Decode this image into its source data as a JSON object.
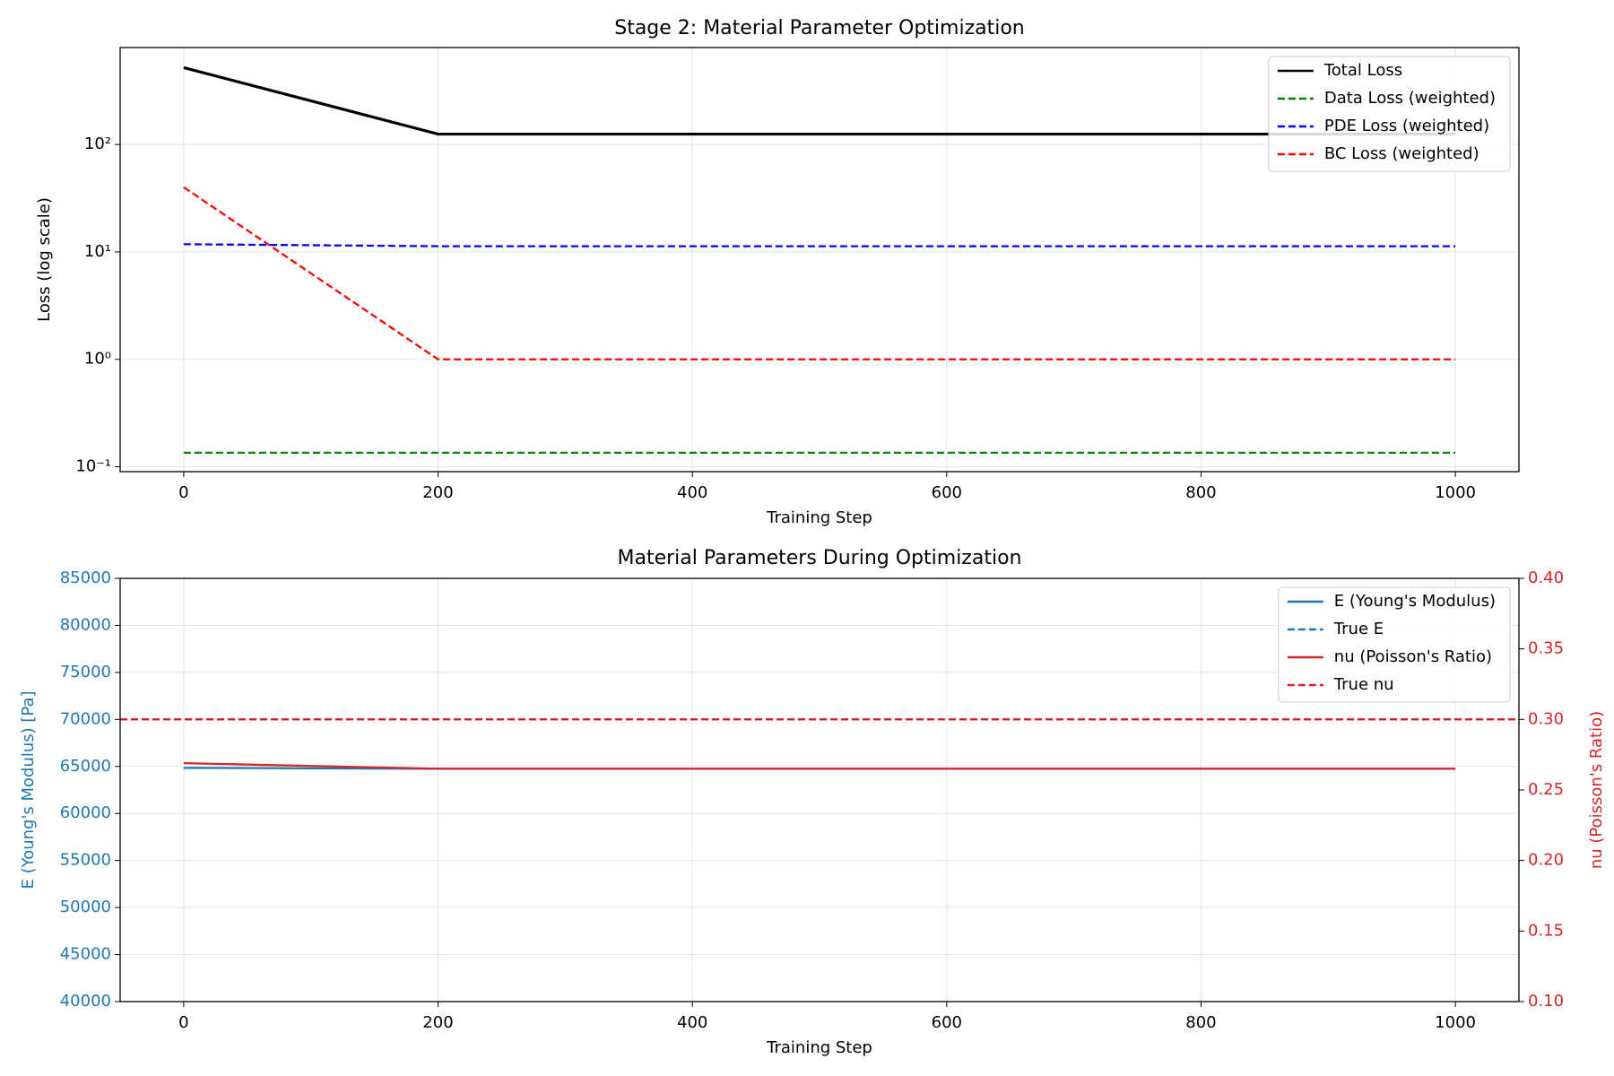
{
  "chart_data": [
    {
      "type": "line",
      "title": "Stage 2: Material Parameter Optimization",
      "xlabel": "Training Step",
      "ylabel": "Loss (log scale)",
      "x": [
        0,
        200,
        400,
        600,
        800,
        1000
      ],
      "xlim": [
        -50,
        1050
      ],
      "xticks": [
        0,
        200,
        400,
        600,
        800,
        1000
      ],
      "ylog": true,
      "ylim": [
        0.09,
        800
      ],
      "yticks": [
        {
          "value": 0.1,
          "label": "10⁻¹"
        },
        {
          "value": 1,
          "label": "10⁰"
        },
        {
          "value": 10,
          "label": "10¹"
        },
        {
          "value": 100,
          "label": "10²"
        }
      ],
      "grid": true,
      "legend": "upper right",
      "series": [
        {
          "name": "Total Loss",
          "color": "#000000",
          "style": "solid",
          "values": [
            520,
            125,
            125,
            125,
            125,
            125
          ]
        },
        {
          "name": "Data Loss (weighted)",
          "color": "#008000",
          "style": "dashed",
          "values": [
            0.135,
            0.135,
            0.135,
            0.135,
            0.135,
            0.135
          ]
        },
        {
          "name": "PDE Loss (weighted)",
          "color": "#0000ff",
          "style": "dashed",
          "values": [
            11.8,
            11.3,
            11.3,
            11.3,
            11.3,
            11.3
          ]
        },
        {
          "name": "BC Loss (weighted)",
          "color": "#ff0000",
          "style": "dashed",
          "values": [
            40,
            1.0,
            1.0,
            1.0,
            1.0,
            1.0
          ]
        }
      ]
    },
    {
      "type": "line",
      "title": "Material Parameters During Optimization",
      "xlabel": "Training Step",
      "ylabel": "E (Young's Modulus) [Pa]",
      "y2label": "nu (Poisson's Ratio)",
      "y_axis_color": "#1f77b4",
      "y2_axis_color": "#d62728",
      "x": [
        0,
        200,
        400,
        600,
        800,
        1000
      ],
      "xlim": [
        -50,
        1050
      ],
      "xticks": [
        0,
        200,
        400,
        600,
        800,
        1000
      ],
      "ylim": [
        40000,
        85000
      ],
      "yticks": [
        40000,
        45000,
        50000,
        55000,
        60000,
        65000,
        70000,
        75000,
        80000,
        85000
      ],
      "y2lim": [
        0.1,
        0.4
      ],
      "y2ticks": [
        {
          "value": 0.1,
          "label": "0.10"
        },
        0.15,
        {
          "value": 0.2,
          "label": "0.20"
        },
        0.25,
        {
          "value": 0.3,
          "label": "0.30"
        },
        0.35,
        {
          "value": 0.4,
          "label": "0.40"
        }
      ],
      "grid": true,
      "legend": "upper right",
      "series": [
        {
          "name": "E (Young's Modulus)",
          "color": "#1f77b4",
          "style": "solid",
          "values": [
            64850,
            64750,
            64750,
            64750,
            64750,
            64750
          ]
        },
        {
          "name": "True E",
          "color": "#1f77b4",
          "style": "dashed",
          "hline": 70000
        },
        {
          "name": "nu (Poisson's Ratio)",
          "color": "#d62728",
          "style": "solid",
          "axis": "y2",
          "values": [
            0.269,
            0.265,
            0.265,
            0.265,
            0.265,
            0.265
          ]
        },
        {
          "name": "True nu",
          "color": "#d62728",
          "style": "dashed",
          "axis": "y2",
          "hline": 0.3
        }
      ]
    }
  ]
}
